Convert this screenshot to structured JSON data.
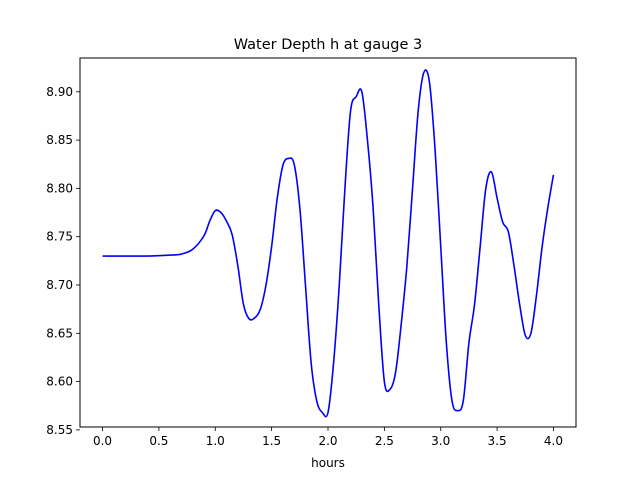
{
  "chart_data": {
    "type": "line",
    "title": "Water Depth h at gauge 3",
    "xlabel": "hours",
    "ylabel": "",
    "xlim": [
      -0.2,
      4.2
    ],
    "ylim": [
      8.553,
      8.935
    ],
    "xticks": [
      0.0,
      0.5,
      1.0,
      1.5,
      2.0,
      2.5,
      3.0,
      3.5,
      4.0
    ],
    "xtick_labels": [
      "0.0",
      "0.5",
      "1.0",
      "1.5",
      "2.0",
      "2.5",
      "3.0",
      "3.5",
      "4.0"
    ],
    "yticks": [
      8.55,
      8.6,
      8.65,
      8.7,
      8.75,
      8.8,
      8.85,
      8.9
    ],
    "ytick_labels": [
      "8.55",
      "8.60",
      "8.65",
      "8.70",
      "8.75",
      "8.80",
      "8.85",
      "8.90"
    ],
    "grid": false,
    "series": [
      {
        "color": "#0000ff",
        "x": [
          0.0,
          0.2,
          0.4,
          0.6,
          0.7,
          0.8,
          0.9,
          0.95,
          1.0,
          1.05,
          1.1,
          1.15,
          1.2,
          1.25,
          1.3,
          1.35,
          1.4,
          1.45,
          1.5,
          1.55,
          1.6,
          1.65,
          1.7,
          1.75,
          1.8,
          1.85,
          1.9,
          1.95,
          2.0,
          2.05,
          2.1,
          2.15,
          2.2,
          2.25,
          2.3,
          2.35,
          2.4,
          2.45,
          2.5,
          2.55,
          2.6,
          2.65,
          2.7,
          2.75,
          2.8,
          2.85,
          2.9,
          2.95,
          3.0,
          3.05,
          3.1,
          3.15,
          3.2,
          3.25,
          3.3,
          3.35,
          3.4,
          3.45,
          3.5,
          3.55,
          3.6,
          3.65,
          3.7,
          3.75,
          3.8,
          3.85,
          3.9,
          3.95,
          4.0
        ],
        "y": [
          8.73,
          8.73,
          8.73,
          8.731,
          8.732,
          8.737,
          8.751,
          8.766,
          8.777,
          8.775,
          8.766,
          8.752,
          8.72,
          8.68,
          8.665,
          8.666,
          8.675,
          8.7,
          8.74,
          8.79,
          8.824,
          8.831,
          8.825,
          8.78,
          8.7,
          8.62,
          8.58,
          8.568,
          8.568,
          8.62,
          8.7,
          8.8,
          8.88,
          8.895,
          8.9,
          8.85,
          8.78,
          8.68,
          8.6,
          8.592,
          8.61,
          8.66,
          8.72,
          8.8,
          8.88,
          8.92,
          8.91,
          8.84,
          8.74,
          8.64,
          8.58,
          8.57,
          8.58,
          8.64,
          8.68,
          8.74,
          8.8,
          8.817,
          8.79,
          8.765,
          8.755,
          8.72,
          8.68,
          8.648,
          8.65,
          8.69,
          8.74,
          8.78,
          8.814
        ]
      }
    ]
  }
}
